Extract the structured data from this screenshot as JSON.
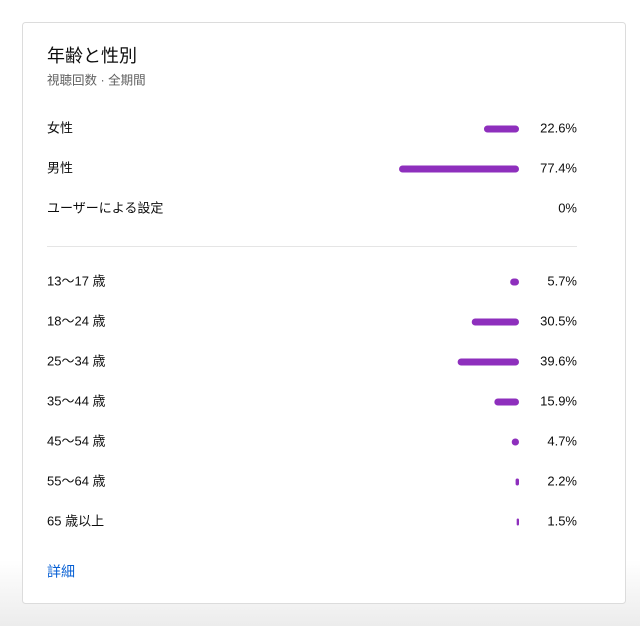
{
  "header": {
    "title": "年齢と性別",
    "subtitle": "視聴回数 · 全期間"
  },
  "gender": [
    {
      "label": "女性",
      "value": 22.6,
      "value_label": "22.6%"
    },
    {
      "label": "男性",
      "value": 77.4,
      "value_label": "77.4%"
    },
    {
      "label": "ユーザーによる設定",
      "value": 0,
      "value_label": "0%"
    }
  ],
  "age": [
    {
      "label": "13〜17 歳",
      "value": 5.7,
      "value_label": "5.7%"
    },
    {
      "label": "18〜24 歳",
      "value": 30.5,
      "value_label": "30.5%"
    },
    {
      "label": "25〜34 歳",
      "value": 39.6,
      "value_label": "39.6%"
    },
    {
      "label": "35〜44 歳",
      "value": 15.9,
      "value_label": "15.9%"
    },
    {
      "label": "45〜54 歳",
      "value": 4.7,
      "value_label": "4.7%"
    },
    {
      "label": "55〜64 歳",
      "value": 2.2,
      "value_label": "2.2%"
    },
    {
      "label": "65 歳以上",
      "value": 1.5,
      "value_label": "1.5%"
    }
  ],
  "footer": {
    "link": "詳細"
  }
}
